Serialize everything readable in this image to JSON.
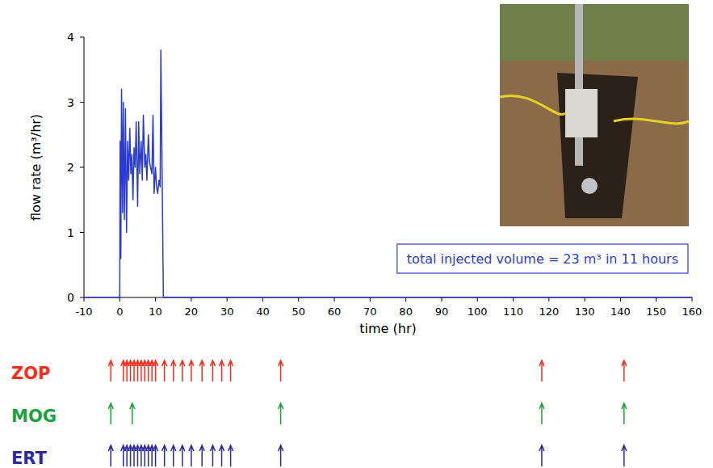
{
  "chart_data": {
    "type": "line",
    "xlabel": "time (hr)",
    "ylabel": "flow rate (m³/hr)",
    "annotation": "total injected volume = 23 m³ in 11 hours",
    "color": "#2b3bd0",
    "x": [
      -10,
      0,
      0.1,
      0.3,
      0.5,
      0.8,
      1.0,
      1.3,
      1.6,
      1.9,
      2.2,
      2.5,
      2.8,
      3.1,
      3.4,
      3.7,
      4.0,
      4.3,
      4.6,
      5.0,
      5.3,
      5.6,
      6.0,
      6.3,
      6.6,
      7.0,
      7.3,
      7.6,
      8.0,
      8.3,
      8.6,
      9.0,
      9.3,
      9.6,
      10.0,
      10.3,
      10.6,
      11.0,
      11.3,
      11.5,
      12.2,
      160
    ],
    "values": [
      0,
      0,
      2.4,
      0.6,
      3.2,
      1.3,
      3.0,
      1.2,
      2.9,
      1.0,
      2.4,
      1.8,
      2.6,
      1.9,
      2.2,
      1.5,
      2.3,
      2.0,
      2.7,
      1.4,
      2.7,
      1.9,
      2.4,
      1.8,
      2.8,
      2.0,
      2.2,
      1.8,
      2.5,
      2.1,
      2.0,
      1.9,
      2.8,
      1.6,
      2.0,
      1.7,
      1.6,
      1.8,
      1.7,
      3.8,
      0,
      0
    ],
    "xlim": [
      -10,
      160
    ],
    "xticks": [
      -10,
      0,
      10,
      20,
      30,
      40,
      50,
      60,
      70,
      80,
      90,
      100,
      110,
      120,
      130,
      140,
      150,
      160
    ],
    "ylim": [
      0,
      4
    ],
    "yticks": [
      0,
      1,
      2,
      3,
      4
    ],
    "events": [
      {
        "name": "ZOP",
        "color": "#ff2a1a",
        "x": [
          -2.5,
          1,
          2,
          3,
          4,
          5,
          6,
          7,
          8,
          9,
          10,
          12.5,
          15,
          17.5,
          20,
          23,
          26,
          28.5,
          31,
          45,
          118,
          141
        ]
      },
      {
        "name": "MOG",
        "color": "#1aa33a",
        "x": [
          -2.5,
          3.5,
          45,
          118,
          141
        ]
      },
      {
        "name": "ERT",
        "color": "#2b2b9e",
        "x": [
          -2.5,
          1,
          2,
          3,
          4,
          5,
          6,
          7,
          8,
          9,
          10,
          12.5,
          15,
          17.5,
          20,
          23,
          26,
          28.5,
          31,
          45,
          118,
          141
        ]
      }
    ]
  }
}
